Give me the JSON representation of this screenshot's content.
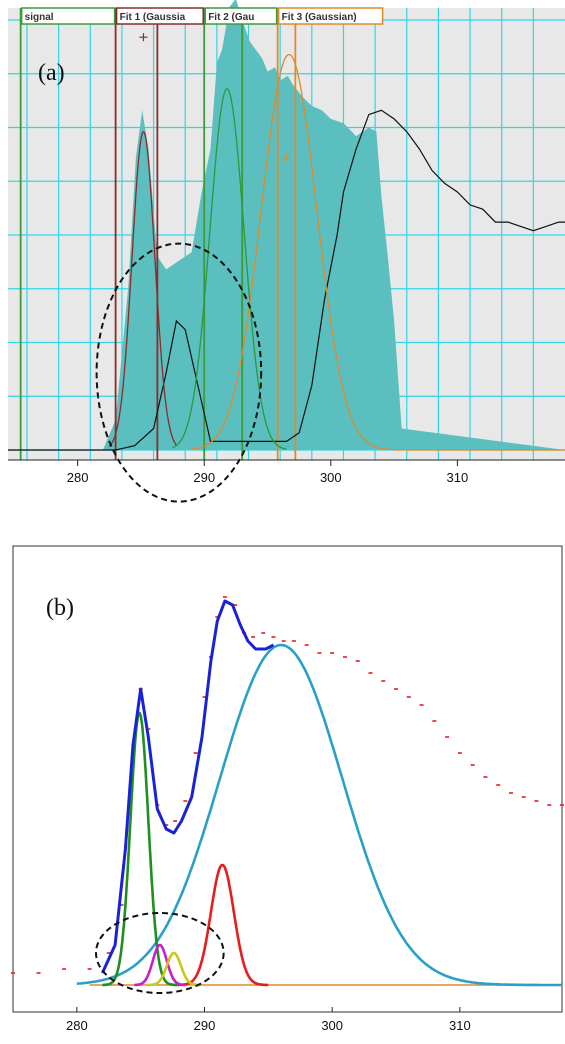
{
  "chart_data": [
    {
      "type": "area",
      "panel_label": "(a)",
      "x_ticks": [
        280,
        290,
        300,
        310
      ],
      "xlim": [
        274.5,
        318.5
      ],
      "ylim": [
        0,
        1.0
      ],
      "grid": true,
      "tabs": [
        {
          "label": "signal",
          "color": "#3c9a3c"
        },
        {
          "label": "Fit 1 (Gaussia",
          "color": "#8c2b2b"
        },
        {
          "label": "Fit 2 (Gau",
          "color": "#3c9a3c"
        },
        {
          "label": "Fit 3 (Gaussian)",
          "color": "#e08a2a"
        }
      ],
      "markers": [
        {
          "x": 283.0,
          "color": "#8c2b2b"
        },
        {
          "x": 286.3,
          "color": "#8c2b2b"
        },
        {
          "x": 275.5,
          "color": "#3c9a3c"
        },
        {
          "x": 290.0,
          "color": "#3c9a3c"
        },
        {
          "x": 293.0,
          "color": "#3c9a3c"
        },
        {
          "x": 295.8,
          "color": "#e08a2a"
        },
        {
          "x": 297.2,
          "color": "#e08a2a"
        }
      ],
      "series": [
        {
          "kind": "filled",
          "color": "#5bbfbf",
          "x": [
            274.5,
            282.0,
            283.0,
            284.0,
            284.6,
            285.1,
            285.6,
            286.3,
            287.0,
            288.0,
            289.0,
            289.8,
            290.5,
            291.0,
            291.4,
            292.0,
            292.5,
            293.0,
            293.6,
            294.1,
            294.6,
            295.0,
            295.6,
            296.0,
            296.6,
            297.0,
            297.8,
            298.5,
            299.3,
            300.0,
            301.0,
            302.0,
            303.0,
            303.6,
            304.0,
            304.5,
            305.0,
            305.6,
            318.5
          ],
          "y": [
            0,
            0,
            0.07,
            0.38,
            0.68,
            0.79,
            0.7,
            0.45,
            0.42,
            0.44,
            0.46,
            0.6,
            0.7,
            0.9,
            0.93,
            1.03,
            1.05,
            1.0,
            0.95,
            0.93,
            0.91,
            0.88,
            0.89,
            0.86,
            0.87,
            0.85,
            0.82,
            0.8,
            0.79,
            0.77,
            0.76,
            0.73,
            0.75,
            0.74,
            0.59,
            0.45,
            0.3,
            0.05,
            0.0
          ]
        },
        {
          "kind": "line",
          "color": "#111111",
          "x": [
            274.5,
            283.0,
            284.5,
            286.0,
            287.0,
            287.8,
            288.5,
            289.5,
            290.5,
            295.0,
            296.5,
            297.5,
            298.5,
            299.5,
            300.5,
            301.0,
            302.0,
            303.0,
            304.0,
            304.5,
            305.0,
            306.0,
            307.0,
            308.0,
            309.0,
            310.0,
            311.0,
            312.0,
            313.0,
            314.0,
            315.0,
            316.0,
            317.0,
            318.0,
            318.5
          ],
          "y": [
            0.0,
            0.0,
            0.01,
            0.05,
            0.18,
            0.3,
            0.28,
            0.15,
            0.02,
            0.02,
            0.02,
            0.04,
            0.15,
            0.35,
            0.5,
            0.6,
            0.7,
            0.78,
            0.79,
            0.78,
            0.77,
            0.74,
            0.7,
            0.65,
            0.62,
            0.6,
            0.57,
            0.56,
            0.53,
            0.53,
            0.52,
            0.51,
            0.52,
            0.53,
            0.53
          ]
        },
        {
          "kind": "gaussian",
          "color": "#8c2b2b",
          "center": 285.2,
          "sigma": 0.9,
          "amp": 0.74,
          "xrange": [
            282.5,
            287.8
          ]
        },
        {
          "kind": "gaussian",
          "color": "#2a9a3a",
          "center": 291.8,
          "sigma": 1.35,
          "amp": 0.84,
          "xrange": [
            287.5,
            296.5
          ]
        },
        {
          "kind": "gaussian",
          "color": "#e08a2a",
          "center": 296.7,
          "sigma": 2.2,
          "amp": 0.92,
          "xrange": [
            289.0,
            318.5
          ]
        }
      ],
      "peak_markers": [
        {
          "x": 285.2,
          "y": 0.96,
          "color": "#8c2b2b"
        },
        {
          "x": 296.5,
          "y": 0.68,
          "color": "#e08a2a"
        }
      ],
      "annotation_ellipse": {
        "cx": 288.0,
        "cy": 0.18,
        "rx": 6.5,
        "ry": 0.3
      }
    },
    {
      "type": "line",
      "panel_label": "(b)",
      "x_ticks": [
        280,
        290,
        300,
        310
      ],
      "xlim": [
        275,
        318
      ],
      "ylim": [
        0,
        1.0
      ],
      "grid": false,
      "series": [
        {
          "kind": "scatter",
          "color": "#e81c1c",
          "x": [
            275.0,
            277.0,
            279.0,
            281.0,
            282.5,
            283.5,
            284.3,
            285.0,
            285.6,
            286.3,
            287.0,
            287.7,
            288.5,
            289.3,
            290.0,
            290.5,
            291.0,
            291.6,
            292.4,
            293.1,
            293.8,
            294.6,
            295.4,
            296.2,
            297.0,
            298.0,
            299.0,
            300.0,
            301.0,
            302.0,
            303.0,
            304.0,
            305.0,
            306.0,
            307.0,
            308.0,
            309.0,
            310.0,
            311.0,
            312.0,
            313.0,
            314.0,
            315.0,
            316.0,
            317.0,
            318.0
          ],
          "y": [
            0.03,
            0.03,
            0.04,
            0.04,
            0.08,
            0.2,
            0.52,
            0.74,
            0.64,
            0.45,
            0.4,
            0.41,
            0.46,
            0.58,
            0.72,
            0.82,
            0.92,
            0.97,
            0.95,
            0.88,
            0.87,
            0.88,
            0.87,
            0.86,
            0.86,
            0.85,
            0.83,
            0.83,
            0.82,
            0.81,
            0.78,
            0.76,
            0.74,
            0.72,
            0.7,
            0.66,
            0.62,
            0.58,
            0.55,
            0.52,
            0.5,
            0.48,
            0.47,
            0.46,
            0.45,
            0.45
          ]
        },
        {
          "kind": "line",
          "color": "#1a22d8",
          "x": [
            282.0,
            283.0,
            283.8,
            284.4,
            285.0,
            285.6,
            286.3,
            287.0,
            287.6,
            288.2,
            289.0,
            289.8,
            290.5,
            291.0,
            291.6,
            292.2,
            292.8,
            293.4,
            294.0,
            294.8,
            295.4
          ],
          "y": [
            0.03,
            0.1,
            0.34,
            0.6,
            0.74,
            0.62,
            0.44,
            0.39,
            0.38,
            0.41,
            0.47,
            0.62,
            0.81,
            0.91,
            0.96,
            0.95,
            0.9,
            0.86,
            0.84,
            0.84,
            0.85
          ]
        },
        {
          "kind": "gaussian",
          "color": "#2aa0c8",
          "center": 296.0,
          "sigma": 4.8,
          "amp": 0.85,
          "xrange": [
            280.0,
            318.0
          ]
        },
        {
          "kind": "gaussian",
          "color": "#1f8f1f",
          "center": 284.9,
          "sigma": 0.7,
          "amp": 0.68,
          "xrange": [
            282.0,
            288.0
          ]
        },
        {
          "kind": "gaussian",
          "color": "#e81c1c",
          "center": 291.4,
          "sigma": 0.9,
          "amp": 0.3,
          "xrange": [
            288.0,
            295.0
          ]
        },
        {
          "kind": "gaussian",
          "color": "#c81ec8",
          "center": 286.5,
          "sigma": 0.55,
          "amp": 0.1,
          "xrange": [
            284.5,
            288.5
          ]
        },
        {
          "kind": "gaussian",
          "color": "#c8c81e",
          "center": 287.6,
          "sigma": 0.55,
          "amp": 0.08,
          "xrange": [
            285.5,
            289.8
          ]
        }
      ],
      "baseline_color": "#e08a2a",
      "annotation_ellipse": {
        "cx": 286.5,
        "cy": 0.08,
        "rx": 5.0,
        "ry": 0.1
      }
    }
  ]
}
